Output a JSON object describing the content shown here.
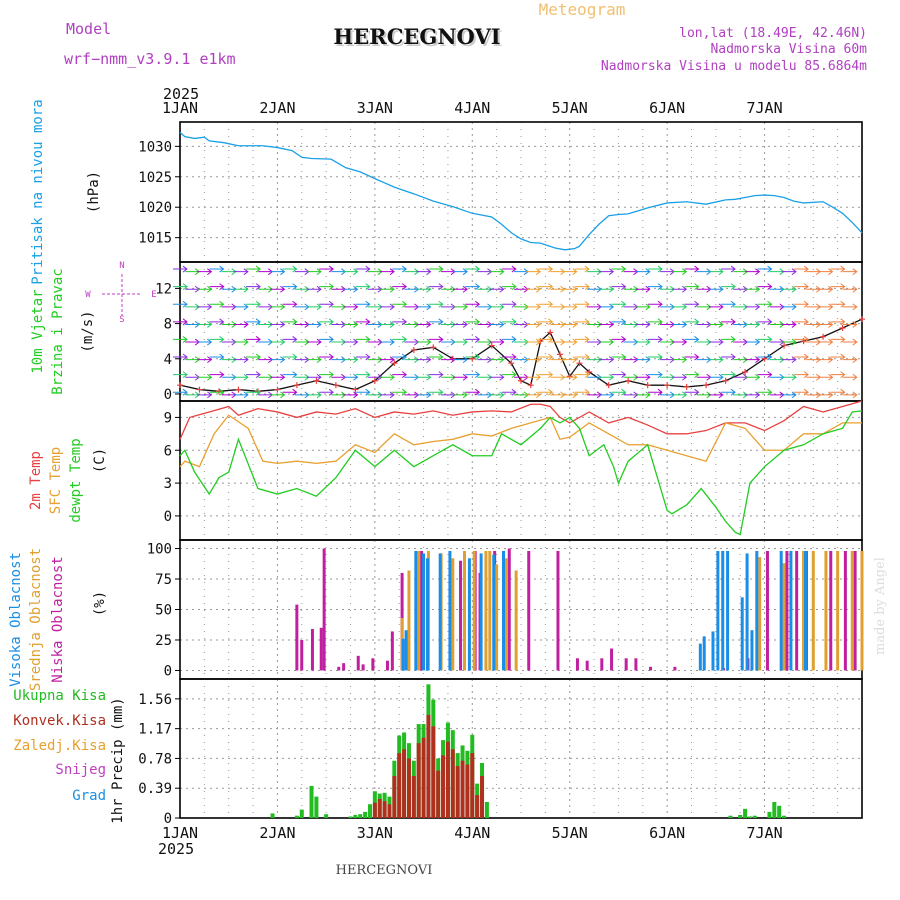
{
  "header": {
    "model_label": "Model",
    "model_name": "wrf−nmm_v3.9.1  e1km",
    "station": "HERCEGNOVI",
    "product": "Meteogram",
    "lonlat": "lon,lat (18.49E, 42.46N)",
    "elevation": "Nadmorska Visina 60m",
    "model_elevation": "Nadmorska Visina u modelu 85.6864m"
  },
  "time_axis": {
    "year": "2025",
    "days": [
      "1JAN",
      "2JAN",
      "3JAN",
      "4JAN",
      "5JAN",
      "6JAN",
      "7JAN"
    ]
  },
  "footer": {
    "station": "HERCEGNOVI",
    "credit": "made by Angel"
  },
  "colors": {
    "pressure": "#1aa0e6",
    "temp2m": "#e84040",
    "sfc": "#e8a030",
    "dewpt": "#22cc22",
    "wind_dir": "#c040c0",
    "high_cloud": "#1a8ee6",
    "mid_cloud": "#e0a030",
    "low_cloud": "#c020a0",
    "precip_total": "#22bb22",
    "precip_conv": "#b03020",
    "frame": "#000000",
    "grid": "#999999"
  },
  "chart_data": [
    {
      "type": "line",
      "ylabel_main": "Pritisak na nivou mora",
      "unit": "(hPa)",
      "yticks": [
        1015,
        1020,
        1025,
        1030
      ],
      "ylim": [
        1011,
        1034
      ],
      "grid": true,
      "series": [
        {
          "color_key": "pressure",
          "x": [
            0,
            0.05,
            0.15,
            0.25,
            0.3,
            0.45,
            0.6,
            0.85,
            1.0,
            1.15,
            1.25,
            1.35,
            1.55,
            1.7,
            1.85,
            2.0,
            2.2,
            2.4,
            2.6,
            2.8,
            3.0,
            3.2,
            3.3,
            3.4,
            3.5,
            3.6,
            3.7,
            3.85,
            3.95,
            4.05,
            4.1,
            4.2,
            4.3,
            4.4,
            4.5,
            4.6,
            4.8,
            5.0,
            5.2,
            5.4,
            5.6,
            5.7,
            5.8,
            5.9,
            6.0,
            6.1,
            6.2,
            6.3,
            6.4,
            6.6,
            6.7,
            6.8,
            6.9,
            7.0
          ],
          "values": [
            1032.3,
            1031.6,
            1031.3,
            1031.5,
            1030.9,
            1030.6,
            1030.1,
            1030.1,
            1029.8,
            1029.3,
            1028.2,
            1028.0,
            1027.9,
            1026.5,
            1025.8,
            1024.7,
            1023.3,
            1022.2,
            1021.0,
            1020.1,
            1019.0,
            1018.4,
            1017.2,
            1015.8,
            1014.8,
            1014.2,
            1014.1,
            1013.3,
            1013.0,
            1013.2,
            1013.6,
            1015.5,
            1017.2,
            1018.6,
            1018.8,
            1018.9,
            1019.9,
            1020.7,
            1020.9,
            1020.5,
            1021.2,
            1021.3,
            1021.6,
            1021.9,
            1022.0,
            1021.9,
            1021.6,
            1021.0,
            1020.7,
            1020.9,
            1020.0,
            1019.0,
            1017.5,
            1015.8
          ]
        }
      ]
    },
    {
      "type": "line",
      "ylabel_main": "10m Vjetar",
      "ylabel_sub": "Brzina i Pravac",
      "unit": "(m/s)",
      "compass": {
        "n": "N",
        "s": "S",
        "e": "E",
        "w": "W"
      },
      "yticks": [
        0,
        4,
        8,
        12
      ],
      "ylim": [
        -0.8,
        15
      ],
      "grid": true,
      "series": [
        {
          "name_role": "speed",
          "x": [
            0,
            0.2,
            0.4,
            0.6,
            0.8,
            1.0,
            1.2,
            1.4,
            1.6,
            1.8,
            2.0,
            2.2,
            2.4,
            2.6,
            2.8,
            3.0,
            3.2,
            3.4,
            3.5,
            3.6,
            3.7,
            3.8,
            3.9,
            4.0,
            4.1,
            4.2,
            4.4,
            4.6,
            4.8,
            5.0,
            5.2,
            5.4,
            5.6,
            5.8,
            6.0,
            6.2,
            6.4,
            6.6,
            6.8,
            7.0
          ],
          "values": [
            1.0,
            0.5,
            0.3,
            0.5,
            0.3,
            0.5,
            1.0,
            1.5,
            1.0,
            0.5,
            1.5,
            3.5,
            5.0,
            5.3,
            4.0,
            4.0,
            5.5,
            3.5,
            1.5,
            1.0,
            6.0,
            7.0,
            4.5,
            2.0,
            3.5,
            2.5,
            1.0,
            1.5,
            1.0,
            1.0,
            0.8,
            1.0,
            1.5,
            2.5,
            4.0,
            5.5,
            6.0,
            6.5,
            7.5,
            8.5
          ]
        }
      ]
    },
    {
      "type": "line",
      "ylabel_lines": [
        "2m Temp",
        "SFC Temp",
        "dewpt Temp"
      ],
      "unit": "(C)",
      "yticks": [
        0,
        3,
        6,
        9
      ],
      "ylim": [
        -2.2,
        10.5
      ],
      "grid": true,
      "series": [
        {
          "color_key": "temp2m",
          "x": [
            0,
            0.1,
            0.3,
            0.5,
            0.6,
            0.8,
            1.0,
            1.2,
            1.4,
            1.6,
            1.8,
            2.0,
            2.2,
            2.4,
            2.6,
            2.8,
            3.0,
            3.2,
            3.4,
            3.6,
            3.7,
            3.8,
            3.9,
            4.0,
            4.2,
            4.4,
            4.6,
            4.8,
            5.0,
            5.2,
            5.4,
            5.6,
            5.8,
            6.0,
            6.2,
            6.4,
            6.6,
            6.8,
            7.0
          ],
          "values": [
            7.0,
            9.0,
            9.5,
            10.0,
            9.2,
            9.8,
            9.5,
            9.0,
            9.5,
            9.3,
            9.8,
            9.0,
            9.5,
            9.3,
            9.6,
            9.2,
            9.5,
            9.6,
            9.5,
            10.2,
            10.2,
            10.0,
            9.0,
            8.5,
            9.5,
            8.5,
            9.0,
            8.3,
            7.5,
            7.5,
            7.8,
            8.5,
            8.5,
            7.8,
            8.7,
            10.0,
            9.5,
            10.0,
            10.5
          ]
        },
        {
          "color_key": "sfc",
          "x": [
            0,
            0.05,
            0.2,
            0.35,
            0.5,
            0.7,
            0.85,
            1.0,
            1.2,
            1.4,
            1.6,
            1.8,
            2.0,
            2.2,
            2.4,
            2.6,
            2.8,
            3.0,
            3.2,
            3.4,
            3.6,
            3.8,
            3.9,
            4.0,
            4.2,
            4.4,
            4.6,
            4.8,
            5.0,
            5.2,
            5.4,
            5.6,
            5.8,
            6.0,
            6.2,
            6.4,
            6.6,
            6.8,
            7.0
          ],
          "values": [
            4.5,
            5.0,
            4.5,
            7.5,
            9.2,
            8.0,
            5.0,
            4.8,
            5.0,
            4.8,
            5.0,
            6.5,
            5.8,
            7.5,
            6.5,
            6.8,
            7.0,
            7.5,
            7.3,
            8.0,
            8.5,
            9.0,
            7.0,
            7.2,
            8.5,
            7.5,
            6.5,
            6.5,
            6.0,
            5.5,
            5.0,
            8.5,
            8.0,
            6.0,
            6.0,
            7.5,
            7.5,
            8.5,
            8.5
          ]
        },
        {
          "color_key": "dewpt",
          "x": [
            0,
            0.05,
            0.15,
            0.3,
            0.4,
            0.5,
            0.6,
            0.8,
            1.0,
            1.2,
            1.4,
            1.6,
            1.8,
            2.0,
            2.2,
            2.4,
            2.6,
            2.8,
            3.0,
            3.2,
            3.3,
            3.5,
            3.7,
            3.8,
            3.9,
            4.0,
            4.1,
            4.2,
            4.35,
            4.45,
            4.5,
            4.6,
            4.8,
            5.0,
            5.05,
            5.2,
            5.35,
            5.5,
            5.6,
            5.7,
            5.75,
            5.85,
            6.0,
            6.2,
            6.4,
            6.6,
            6.8,
            6.9,
            7.0
          ],
          "values": [
            5.5,
            6.0,
            4.0,
            2.0,
            3.5,
            4.0,
            7.0,
            2.5,
            2.0,
            2.5,
            1.8,
            3.5,
            6.0,
            4.5,
            6.0,
            4.5,
            5.5,
            6.5,
            5.5,
            5.5,
            7.5,
            6.5,
            8.0,
            9.0,
            8.5,
            9.0,
            8.0,
            5.5,
            6.5,
            4.5,
            3.0,
            5.0,
            6.5,
            0.5,
            0.2,
            1.0,
            2.5,
            0.8,
            -0.5,
            -1.5,
            -1.7,
            3.0,
            4.5,
            6.0,
            6.5,
            7.5,
            8.0,
            9.5,
            9.6
          ]
        }
      ]
    },
    {
      "type": "bar",
      "ylabel_lines": [
        "Visoka Oblacnost",
        "Srednja Oblacnost",
        "Niska Oblacnost"
      ],
      "unit": "(%)",
      "yticks": [
        0,
        25,
        50,
        75,
        100
      ],
      "ylim": [
        -7,
        107
      ],
      "grid": true,
      "series": [
        {
          "name_role": "low",
          "color_key": "low_cloud",
          "x": [
            1.22,
            1.27,
            1.38,
            1.47,
            1.5,
            1.65,
            1.7,
            1.85,
            1.9,
            2.0,
            2.15,
            2.2,
            2.3,
            2.5,
            2.9,
            3.05,
            3.1,
            3.25,
            3.4,
            3.6,
            3.9,
            4.1,
            4.2,
            4.35,
            4.45,
            4.6,
            4.7,
            4.85,
            5.1,
            5.6,
            5.85,
            6.05,
            6.25,
            6.35,
            6.45,
            6.7,
            6.85,
            6.95
          ],
          "values": [
            54,
            25,
            34,
            35,
            100,
            3,
            6,
            12,
            5,
            10,
            8,
            32,
            80,
            98,
            90,
            98,
            80,
            98,
            100,
            98,
            98,
            10,
            8,
            10,
            18,
            10,
            10,
            3,
            3,
            2,
            10,
            98,
            98,
            98,
            98,
            98,
            98,
            98
          ]
        },
        {
          "name_role": "mid",
          "color_key": "mid_cloud",
          "x": [
            2.28,
            2.35,
            2.45,
            2.55,
            2.68,
            2.8,
            2.92,
            3.02,
            3.14,
            3.18,
            3.25,
            3.35,
            3.45,
            5.95,
            6.2,
            6.4,
            6.5,
            6.63,
            6.75,
            6.9,
            7.0
          ],
          "values": [
            43,
            82,
            98,
            98,
            96,
            92,
            98,
            98,
            98,
            98,
            87,
            92,
            82,
            93,
            88,
            98,
            98,
            98,
            98,
            98,
            98
          ]
        },
        {
          "name_role": "high",
          "color_key": "high_cloud",
          "x": [
            2.27,
            2.3,
            2.4,
            2.48,
            2.52,
            2.65,
            2.75,
            2.95,
            3.07,
            3.2,
            3.3,
            5.32,
            5.36,
            5.45,
            5.5,
            5.55,
            5.6,
            5.75,
            5.8,
            5.85,
            5.9,
            6.15,
            6.25,
            6.4
          ],
          "values": [
            26,
            33,
            98,
            96,
            92,
            96,
            98,
            92,
            96,
            95,
            98,
            22,
            28,
            32,
            98,
            98,
            98,
            60,
            96,
            33,
            98,
            98,
            98,
            98
          ]
        }
      ]
    },
    {
      "type": "bar",
      "legend": [
        "Ukupna Kisa",
        "Konvek.Kisa",
        "Zaledj.Kisa",
        "Snijeg",
        "Grad"
      ],
      "legend_color_keys": [
        "precip_total",
        "precip_conv",
        "sfc",
        "wind_dir",
        "high_cloud"
      ],
      "ylabel_main": "1hr Precip",
      "unit": "(mm)",
      "yticks": [
        "0",
        "0.39",
        "0.78",
        "1.17",
        "1.56"
      ],
      "ylim": [
        0,
        1.82
      ],
      "grid": true,
      "series": [
        {
          "name_role": "total",
          "color_key": "precip_total",
          "x": [
            0.95,
            1.2,
            1.25,
            1.35,
            1.4,
            1.5,
            1.75,
            1.8,
            1.85,
            1.9,
            1.95,
            2.0,
            2.05,
            2.1,
            2.15,
            2.2,
            2.25,
            2.3,
            2.35,
            2.4,
            2.45,
            2.5,
            2.55,
            2.6,
            2.65,
            2.7,
            2.75,
            2.8,
            2.85,
            2.9,
            2.95,
            3.0,
            3.05,
            3.1,
            3.15,
            5.65,
            5.75,
            5.8,
            5.85,
            5.9,
            6.05,
            6.1,
            6.15,
            6.2
          ],
          "values": [
            0.06,
            0.03,
            0.11,
            0.42,
            0.28,
            0.05,
            0.02,
            0.04,
            0.05,
            0.08,
            0.18,
            0.35,
            0.32,
            0.33,
            0.28,
            0.75,
            1.08,
            1.12,
            0.98,
            0.75,
            1.23,
            1.23,
            1.75,
            1.55,
            0.78,
            1.02,
            1.25,
            1.15,
            0.85,
            0.95,
            0.88,
            1.09,
            0.45,
            0.72,
            0.21,
            0.03,
            0.04,
            0.12,
            0.02,
            0.03,
            0.08,
            0.21,
            0.16,
            0.03
          ]
        },
        {
          "name_role": "convective",
          "color_key": "precip_conv",
          "x": [
            2.0,
            2.05,
            2.1,
            2.15,
            2.2,
            2.25,
            2.3,
            2.35,
            2.4,
            2.45,
            2.5,
            2.55,
            2.6,
            2.65,
            2.7,
            2.75,
            2.8,
            2.85,
            2.9,
            2.95,
            3.0,
            3.05,
            3.1
          ],
          "values": [
            0.2,
            0.25,
            0.22,
            0.18,
            0.55,
            0.85,
            0.9,
            0.78,
            0.55,
            0.98,
            1.05,
            1.35,
            1.2,
            0.62,
            0.82,
            1.0,
            0.9,
            0.68,
            0.75,
            0.7,
            0.85,
            0.3,
            0.55
          ]
        }
      ]
    }
  ]
}
